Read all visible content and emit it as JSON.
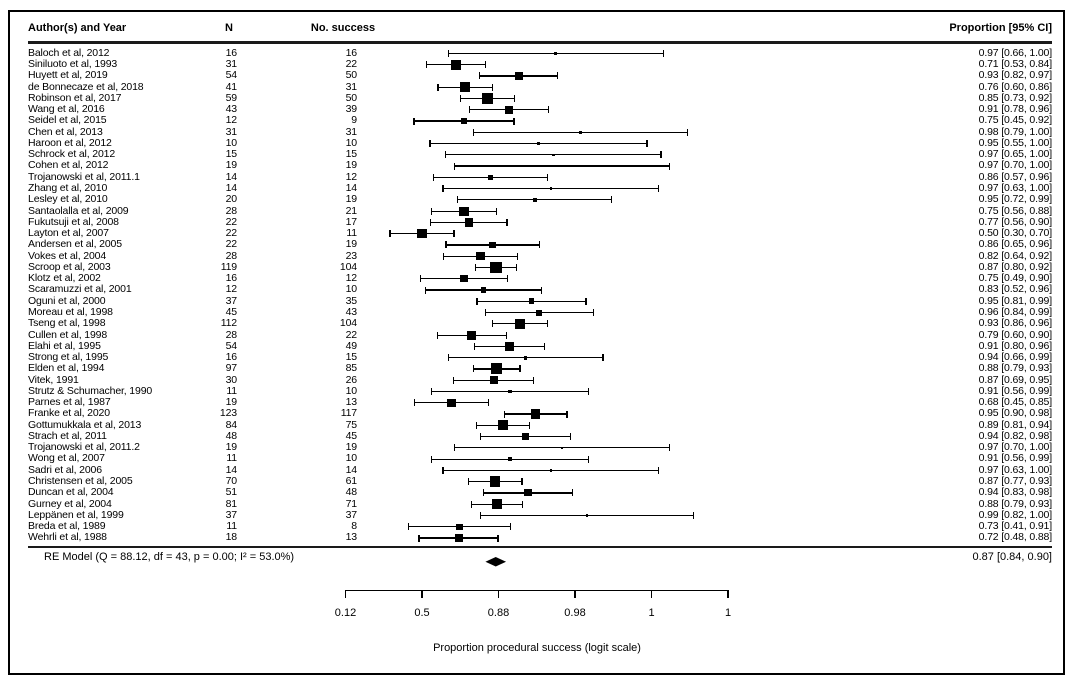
{
  "header": {
    "col_author": "Author(s) and Year",
    "col_n": "N",
    "col_success": "No. success",
    "col_ci": "Proportion [95% CI]"
  },
  "summary": {
    "label": "RE Model (Q = 88.12, df = 43, p = 0.00; I² = 53.0%)",
    "ci_text": "0.87 [0.84, 0.90]",
    "prop": 0.87,
    "lo": 0.84,
    "hi": 0.9
  },
  "chart_data": {
    "type": "forest",
    "title": "",
    "xlabel": "Proportion procedural success (logit scale)",
    "x_axis": {
      "label": "Proportion procedural success (logit scale)",
      "scale": "logit",
      "tick_labels": [
        "0.12",
        "0.5",
        "0.88",
        "0.98",
        "1",
        "1"
      ],
      "tick_positions_logit": [
        -2,
        0,
        2,
        4,
        6,
        8
      ],
      "xlim_logit": [
        -2,
        8
      ]
    },
    "columns": [
      "Author(s) and Year",
      "N",
      "No. success",
      "Proportion [95% CI]"
    ],
    "studies": [
      {
        "author": "Baloch et al, 2012",
        "n": 16,
        "success": 16,
        "prop": 0.97,
        "ci": [
          0.66,
          1.0
        ],
        "ci_text": "0.97 [0.66, 1.00]"
      },
      {
        "author": "Siniluoto et al, 1993",
        "n": 31,
        "success": 22,
        "prop": 0.71,
        "ci": [
          0.53,
          0.84
        ],
        "ci_text": "0.71 [0.53, 0.84]"
      },
      {
        "author": "Huyett et al, 2019",
        "n": 54,
        "success": 50,
        "prop": 0.93,
        "ci": [
          0.82,
          0.97
        ],
        "ci_text": "0.93 [0.82, 0.97]"
      },
      {
        "author": "de Bonnecaze et al, 2018",
        "n": 41,
        "success": 31,
        "prop": 0.76,
        "ci": [
          0.6,
          0.86
        ],
        "ci_text": "0.76 [0.60, 0.86]"
      },
      {
        "author": "Robinson et al, 2017",
        "n": 59,
        "success": 50,
        "prop": 0.85,
        "ci": [
          0.73,
          0.92
        ],
        "ci_text": "0.85 [0.73, 0.92]"
      },
      {
        "author": "Wang et al, 2016",
        "n": 43,
        "success": 39,
        "prop": 0.91,
        "ci": [
          0.78,
          0.96
        ],
        "ci_text": "0.91 [0.78, 0.96]"
      },
      {
        "author": "Seidel et al, 2015",
        "n": 12,
        "success": 9,
        "prop": 0.75,
        "ci": [
          0.45,
          0.92
        ],
        "ci_text": "0.75 [0.45, 0.92]"
      },
      {
        "author": "Chen et al, 2013",
        "n": 31,
        "success": 31,
        "prop": 0.98,
        "ci": [
          0.79,
          1.0
        ],
        "ci_text": "0.98 [0.79, 1.00]"
      },
      {
        "author": "Haroon et al, 2012",
        "n": 10,
        "success": 10,
        "prop": 0.95,
        "ci": [
          0.55,
          1.0
        ],
        "ci_text": "0.95 [0.55, 1.00]"
      },
      {
        "author": "Schrock et al, 2012",
        "n": 15,
        "success": 15,
        "prop": 0.97,
        "ci": [
          0.65,
          1.0
        ],
        "ci_text": "0.97 [0.65, 1.00]"
      },
      {
        "author": "Cohen et al, 2012",
        "n": 19,
        "success": 19,
        "prop": 0.97,
        "ci": [
          0.7,
          1.0
        ],
        "ci_text": "0.97 [0.70, 1.00]"
      },
      {
        "author": "Trojanowski et al, 2011.1",
        "n": 14,
        "success": 12,
        "prop": 0.86,
        "ci": [
          0.57,
          0.96
        ],
        "ci_text": "0.86 [0.57, 0.96]"
      },
      {
        "author": "Zhang et al, 2010",
        "n": 14,
        "success": 14,
        "prop": 0.97,
        "ci": [
          0.63,
          1.0
        ],
        "ci_text": "0.97 [0.63, 1.00]"
      },
      {
        "author": "Lesley et al, 2010",
        "n": 20,
        "success": 19,
        "prop": 0.95,
        "ci": [
          0.72,
          0.99
        ],
        "ci_text": "0.95 [0.72, 0.99]"
      },
      {
        "author": "Santaolalla et al, 2009",
        "n": 28,
        "success": 21,
        "prop": 0.75,
        "ci": [
          0.56,
          0.88
        ],
        "ci_text": "0.75 [0.56, 0.88]"
      },
      {
        "author": "Fukutsuji et al, 2008",
        "n": 22,
        "success": 17,
        "prop": 0.77,
        "ci": [
          0.56,
          0.9
        ],
        "ci_text": "0.77 [0.56, 0.90]"
      },
      {
        "author": "Layton et al, 2007",
        "n": 22,
        "success": 11,
        "prop": 0.5,
        "ci": [
          0.3,
          0.7
        ],
        "ci_text": "0.50 [0.30, 0.70]"
      },
      {
        "author": "Andersen et al, 2005",
        "n": 22,
        "success": 19,
        "prop": 0.86,
        "ci": [
          0.65,
          0.96
        ],
        "ci_text": "0.86 [0.65, 0.96]"
      },
      {
        "author": "Vokes et al, 2004",
        "n": 28,
        "success": 23,
        "prop": 0.82,
        "ci": [
          0.64,
          0.92
        ],
        "ci_text": "0.82 [0.64, 0.92]"
      },
      {
        "author": "Scroop et al, 2003",
        "n": 119,
        "success": 104,
        "prop": 0.87,
        "ci": [
          0.8,
          0.92
        ],
        "ci_text": "0.87 [0.80, 0.92]"
      },
      {
        "author": "Klotz et al, 2002",
        "n": 16,
        "success": 12,
        "prop": 0.75,
        "ci": [
          0.49,
          0.9
        ],
        "ci_text": "0.75 [0.49, 0.90]"
      },
      {
        "author": "Scaramuzzi et al, 2001",
        "n": 12,
        "success": 10,
        "prop": 0.83,
        "ci": [
          0.52,
          0.96
        ],
        "ci_text": "0.83 [0.52, 0.96]"
      },
      {
        "author": "Oguni et al, 2000",
        "n": 37,
        "success": 35,
        "prop": 0.95,
        "ci": [
          0.81,
          0.99
        ],
        "ci_text": "0.95 [0.81, 0.99]"
      },
      {
        "author": "Moreau et al, 1998",
        "n": 45,
        "success": 43,
        "prop": 0.96,
        "ci": [
          0.84,
          0.99
        ],
        "ci_text": "0.96 [0.84, 0.99]"
      },
      {
        "author": "Tseng et al, 1998",
        "n": 112,
        "success": 104,
        "prop": 0.93,
        "ci": [
          0.86,
          0.96
        ],
        "ci_text": "0.93 [0.86, 0.96]"
      },
      {
        "author": "Cullen et al, 1998",
        "n": 28,
        "success": 22,
        "prop": 0.79,
        "ci": [
          0.6,
          0.9
        ],
        "ci_text": "0.79 [0.60, 0.90]"
      },
      {
        "author": "Elahi et al, 1995",
        "n": 54,
        "success": 49,
        "prop": 0.91,
        "ci": [
          0.8,
          0.96
        ],
        "ci_text": "0.91 [0.80, 0.96]"
      },
      {
        "author": "Strong et al, 1995",
        "n": 16,
        "success": 15,
        "prop": 0.94,
        "ci": [
          0.66,
          0.99
        ],
        "ci_text": "0.94 [0.66, 0.99]"
      },
      {
        "author": "Elden et al, 1994",
        "n": 97,
        "success": 85,
        "prop": 0.88,
        "ci": [
          0.79,
          0.93
        ],
        "ci_text": "0.88 [0.79, 0.93]"
      },
      {
        "author": "Vitek, 1991",
        "n": 30,
        "success": 26,
        "prop": 0.87,
        "ci": [
          0.69,
          0.95
        ],
        "ci_text": "0.87 [0.69, 0.95]"
      },
      {
        "author": "Strutz & Schumacher, 1990",
        "n": 11,
        "success": 10,
        "prop": 0.91,
        "ci": [
          0.56,
          0.99
        ],
        "ci_text": "0.91 [0.56, 0.99]"
      },
      {
        "author": "Parnes et al, 1987",
        "n": 19,
        "success": 13,
        "prop": 0.68,
        "ci": [
          0.45,
          0.85
        ],
        "ci_text": "0.68 [0.45, 0.85]"
      },
      {
        "author": "Franke et al, 2020",
        "n": 123,
        "success": 117,
        "prop": 0.95,
        "ci": [
          0.9,
          0.98
        ],
        "ci_text": "0.95 [0.90, 0.98]"
      },
      {
        "author": "Gottumukkala et al, 2013",
        "n": 84,
        "success": 75,
        "prop": 0.89,
        "ci": [
          0.81,
          0.94
        ],
        "ci_text": "0.89 [0.81, 0.94]"
      },
      {
        "author": "Strach et al, 2011",
        "n": 48,
        "success": 45,
        "prop": 0.94,
        "ci": [
          0.82,
          0.98
        ],
        "ci_text": "0.94 [0.82, 0.98]"
      },
      {
        "author": "Trojanowski et al, 2011.2",
        "n": 19,
        "success": 19,
        "prop": 0.97,
        "ci": [
          0.7,
          1.0
        ],
        "ci_text": "0.97 [0.70, 1.00]"
      },
      {
        "author": "Wong et al, 2007",
        "n": 11,
        "success": 10,
        "prop": 0.91,
        "ci": [
          0.56,
          0.99
        ],
        "ci_text": "0.91 [0.56, 0.99]"
      },
      {
        "author": "Sadri et al, 2006",
        "n": 14,
        "success": 14,
        "prop": 0.97,
        "ci": [
          0.63,
          1.0
        ],
        "ci_text": "0.97 [0.63, 1.00]"
      },
      {
        "author": "Christensen et al, 2005",
        "n": 70,
        "success": 61,
        "prop": 0.87,
        "ci": [
          0.77,
          0.93
        ],
        "ci_text": "0.87 [0.77, 0.93]"
      },
      {
        "author": "Duncan et al, 2004",
        "n": 51,
        "success": 48,
        "prop": 0.94,
        "ci": [
          0.83,
          0.98
        ],
        "ci_text": "0.94 [0.83, 0.98]"
      },
      {
        "author": "Gurney et al, 2004",
        "n": 81,
        "success": 71,
        "prop": 0.88,
        "ci": [
          0.79,
          0.93
        ],
        "ci_text": "0.88 [0.79, 0.93]"
      },
      {
        "author": "Leppänen et al, 1999",
        "n": 37,
        "success": 37,
        "prop": 0.99,
        "ci": [
          0.82,
          1.0
        ],
        "ci_text": "0.99 [0.82, 1.00]"
      },
      {
        "author": "Breda et al, 1989",
        "n": 11,
        "success": 8,
        "prop": 0.73,
        "ci": [
          0.41,
          0.91
        ],
        "ci_text": "0.73 [0.41, 0.91]"
      },
      {
        "author": "Wehrli et al, 1988",
        "n": 18,
        "success": 13,
        "prop": 0.72,
        "ci": [
          0.48,
          0.88
        ],
        "ci_text": "0.72 [0.48, 0.88]"
      }
    ],
    "summary": {
      "label": "RE Model (Q = 88.12, df = 43, p = 0.00; I² = 53.0%)",
      "prop": 0.87,
      "ci": [
        0.84,
        0.9
      ],
      "ci_text": "0.87 [0.84, 0.90]"
    }
  }
}
